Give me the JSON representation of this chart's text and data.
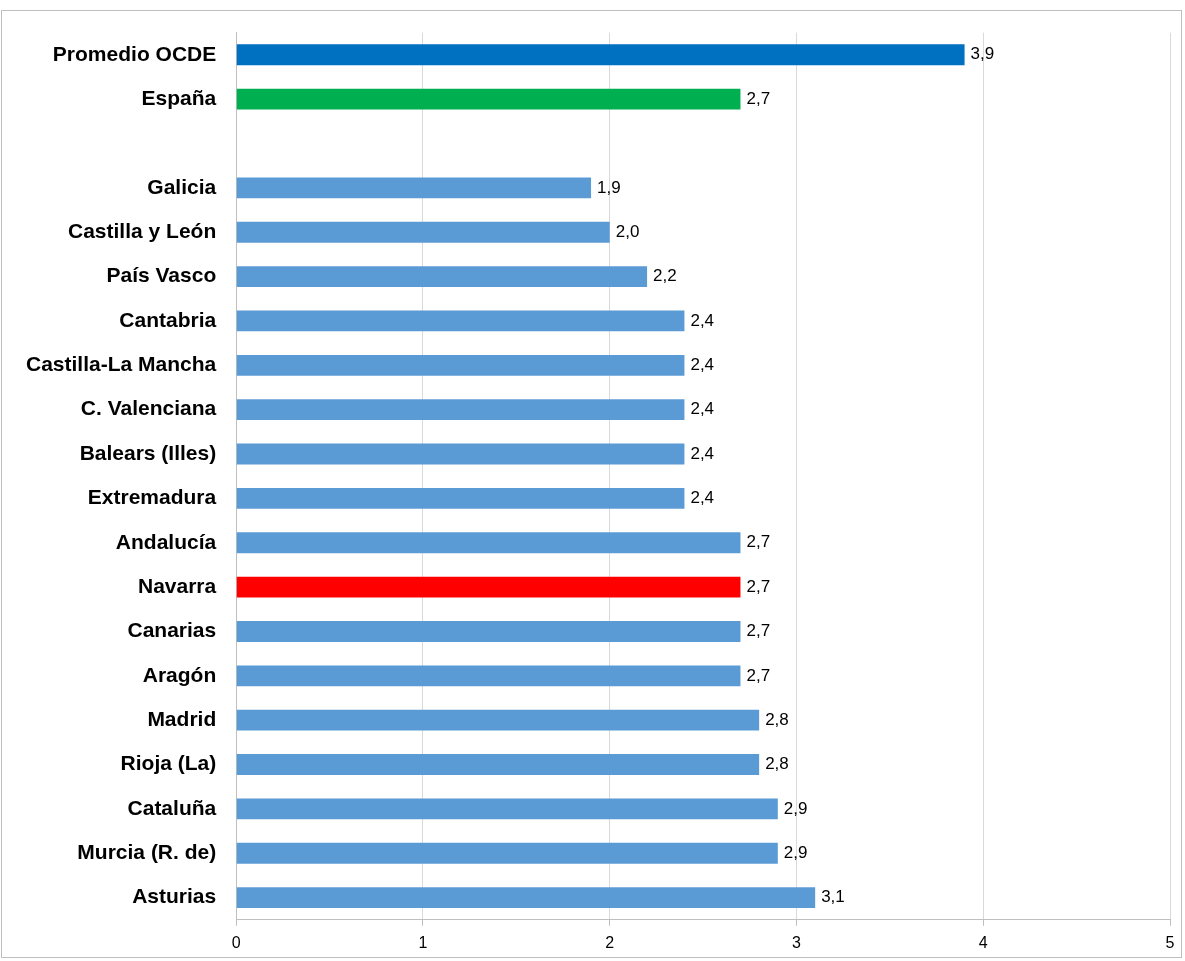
{
  "chart_data": {
    "type": "bar",
    "orientation": "horizontal",
    "categories": [
      "Promedio OCDE",
      "España",
      null,
      "Galicia",
      "Castilla y León",
      "País Vasco",
      "Cantabria",
      "Castilla-La Mancha",
      "C. Valenciana",
      "Balears (Illes)",
      "Extremadura",
      "Andalucía",
      "Navarra",
      "Canarias",
      "Aragón",
      "Madrid",
      "Rioja (La)",
      "Cataluña",
      "Murcia (R. de)",
      "Asturias"
    ],
    "values": [
      3.9,
      2.7,
      null,
      1.9,
      2.0,
      2.2,
      2.4,
      2.4,
      2.4,
      2.4,
      2.4,
      2.7,
      2.7,
      2.7,
      2.7,
      2.8,
      2.8,
      2.9,
      2.9,
      3.1
    ],
    "colors": [
      "#0070c0",
      "#00b050",
      null,
      "#5b9bd5",
      "#5b9bd5",
      "#5b9bd5",
      "#5b9bd5",
      "#5b9bd5",
      "#5b9bd5",
      "#5b9bd5",
      "#5b9bd5",
      "#5b9bd5",
      "#ff0000",
      "#5b9bd5",
      "#5b9bd5",
      "#5b9bd5",
      "#5b9bd5",
      "#5b9bd5",
      "#5b9bd5",
      "#5b9bd5"
    ],
    "value_labels": [
      "3,9",
      "2,7",
      null,
      "1,9",
      "2,0",
      "2,2",
      "2,4",
      "2,4",
      "2,4",
      "2,4",
      "2,4",
      "2,7",
      "2,7",
      "2,7",
      "2,7",
      "2,8",
      "2,8",
      "2,9",
      "2,9",
      "3,1"
    ],
    "xlim": [
      0,
      5
    ],
    "xticks": [
      0,
      1,
      2,
      3,
      4,
      5
    ],
    "grid": "x",
    "legend": false
  }
}
